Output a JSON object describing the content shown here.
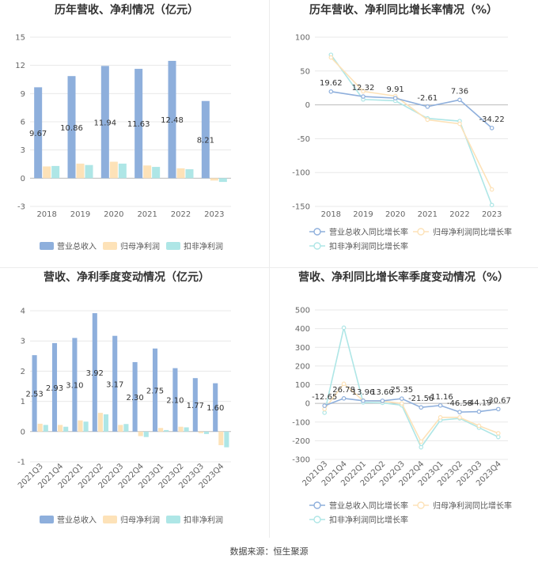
{
  "source": "数据来源：恒生聚源",
  "chart_data": [
    {
      "type": "bar",
      "title": "历年营收、净利情况（亿元）",
      "categories": [
        "2018",
        "2019",
        "2020",
        "2021",
        "2022",
        "2023"
      ],
      "ylim": [
        -3,
        15
      ],
      "yticks": [
        -3,
        0,
        3,
        6,
        9,
        12,
        15
      ],
      "series": [
        {
          "name": "营业总收入",
          "color": "#8eafdc",
          "values": [
            9.67,
            10.86,
            11.94,
            11.63,
            12.48,
            8.21
          ],
          "labels": [
            "9.67",
            "10.86",
            "11.94",
            "11.63",
            "12.48",
            "8.21"
          ]
        },
        {
          "name": "归母净利润",
          "color": "#fde2b8",
          "values": [
            1.25,
            1.55,
            1.75,
            1.35,
            1.05,
            -0.25
          ]
        },
        {
          "name": "扣非净利润",
          "color": "#aee6e6",
          "values": [
            1.3,
            1.4,
            1.55,
            1.2,
            0.95,
            -0.4
          ]
        }
      ]
    },
    {
      "type": "line",
      "title": "历年营收、净利同比增长率情况（%）",
      "categories": [
        "2018",
        "2019",
        "2020",
        "2021",
        "2022",
        "2023"
      ],
      "ylim": [
        -150,
        100
      ],
      "yticks": [
        -150,
        -100,
        -50,
        0,
        50,
        100
      ],
      "series": [
        {
          "name": "营业总收入同比增长率",
          "color": "#8eafdc",
          "values": [
            19.62,
            12.32,
            9.91,
            -2.61,
            7.36,
            -34.22
          ],
          "labels": [
            "19.62",
            "12.32",
            "9.91",
            "-2.61",
            "7.36",
            "-34.22"
          ]
        },
        {
          "name": "归母净利润同比增长率",
          "color": "#fde2b8",
          "values": [
            70,
            20,
            13,
            -22,
            -28,
            -125
          ]
        },
        {
          "name": "扣非净利润同比增长率",
          "color": "#aee6e6",
          "values": [
            74,
            8,
            6,
            -20,
            -24,
            -148
          ]
        }
      ]
    },
    {
      "type": "bar",
      "title": "营收、净利季度变动情况（亿元）",
      "categories": [
        "2021Q3",
        "2021Q4",
        "2022Q1",
        "2022Q2",
        "2022Q3",
        "2022Q4",
        "2023Q1",
        "2023Q2",
        "2023Q3",
        "2023Q4"
      ],
      "ylim": [
        -1,
        4
      ],
      "yticks": [
        -1,
        0,
        1,
        2,
        3,
        4
      ],
      "series": [
        {
          "name": "营业总收入",
          "color": "#8eafdc",
          "values": [
            2.53,
            2.93,
            3.1,
            3.92,
            3.17,
            2.3,
            2.75,
            2.1,
            1.77,
            1.6
          ],
          "labels": [
            "2.53",
            "2.93",
            "3.10",
            "3.92",
            "3.17",
            "2.30",
            "2.75",
            "2.10",
            "1.77",
            "1.60"
          ]
        },
        {
          "name": "归母净利润",
          "color": "#fde2b8",
          "values": [
            0.26,
            0.22,
            0.37,
            0.62,
            0.22,
            -0.15,
            0.12,
            0.16,
            -0.05,
            -0.45
          ]
        },
        {
          "name": "扣非净利润",
          "color": "#aee6e6",
          "values": [
            0.22,
            0.16,
            0.33,
            0.57,
            0.25,
            -0.18,
            0.05,
            0.14,
            -0.08,
            -0.52
          ]
        }
      ]
    },
    {
      "type": "line",
      "title": "营收、净利同比增长率季度变动情况（%）",
      "categories": [
        "2021Q3",
        "2021Q4",
        "2022Q1",
        "2022Q2",
        "2022Q3",
        "2022Q4",
        "2023Q1",
        "2023Q2",
        "2023Q3",
        "2023Q4"
      ],
      "ylim": [
        -300,
        500
      ],
      "yticks": [
        -300,
        -200,
        -100,
        0,
        100,
        200,
        300,
        400,
        500
      ],
      "series": [
        {
          "name": "营业总收入同比增长率",
          "color": "#8eafdc",
          "values": [
            -12.65,
            26.78,
            13.96,
            13.6,
            25.35,
            -21.56,
            -11.16,
            -46.58,
            -44.19,
            -30.67
          ],
          "labels": [
            "-12.65",
            "26.78",
            "13.96",
            "13.60",
            "25.35",
            "-21.56",
            "-11.16",
            "-46.58",
            "-44.19",
            "-30.67"
          ]
        },
        {
          "name": "归母净利润同比增长率",
          "color": "#fde2b8",
          "values": [
            -30,
            105,
            15,
            12,
            0,
            -205,
            -75,
            -75,
            -120,
            -160
          ]
        },
        {
          "name": "扣非净利润同比增长率",
          "color": "#aee6e6",
          "values": [
            -50,
            405,
            5,
            3,
            -10,
            -235,
            -90,
            -80,
            -130,
            -180
          ]
        }
      ]
    }
  ]
}
